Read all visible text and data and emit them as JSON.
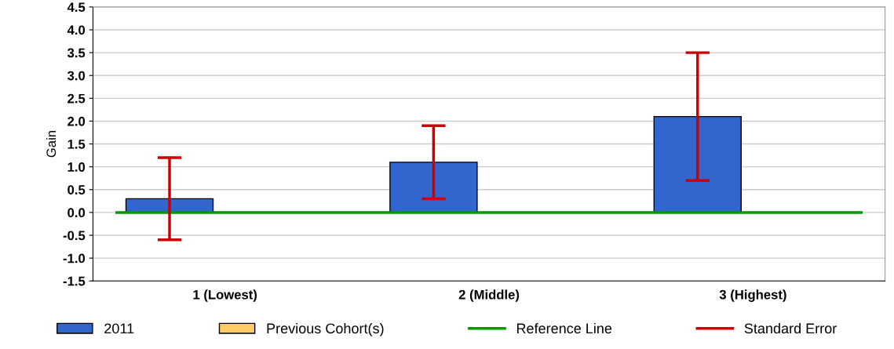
{
  "chart_data": {
    "type": "bar",
    "ylabel": "Gain",
    "categories": [
      "1 (Lowest)",
      "2 (Middle)",
      "3 (Highest)"
    ],
    "series": [
      {
        "name": "2011",
        "color": "#3366cc",
        "values": [
          0.3,
          1.1,
          2.1
        ],
        "errors": [
          [
            -0.6,
            1.2
          ],
          [
            0.3,
            1.9
          ],
          [
            0.7,
            3.5
          ]
        ]
      },
      {
        "name": "Previous Cohort(s)",
        "color": "#ffcc66",
        "values": [
          null,
          null,
          null
        ]
      }
    ],
    "ylim": [
      -1.5,
      4.5
    ],
    "yticks": [
      {
        "value": -1.5,
        "label": "-1.5"
      },
      {
        "value": -1.0,
        "label": "-1.0"
      },
      {
        "value": -0.5,
        "label": "-0.5"
      },
      {
        "value": 0.0,
        "label": "0.0"
      },
      {
        "value": 0.5,
        "label": "0.5"
      },
      {
        "value": 1.0,
        "label": "1.0"
      },
      {
        "value": 1.5,
        "label": "1.5"
      },
      {
        "value": 2.0,
        "label": "2.0"
      },
      {
        "value": 2.5,
        "label": "2.5"
      },
      {
        "value": 3.0,
        "label": "3.0"
      },
      {
        "value": 3.5,
        "label": "3.5"
      },
      {
        "value": 4.0,
        "label": "4.0"
      },
      {
        "value": 4.5,
        "label": "4.5"
      }
    ],
    "ref_lines": [
      {
        "axis": "y",
        "value": 0,
        "label": "Reference Line",
        "color": "#009900"
      }
    ],
    "annotations": [
      "Standard Error"
    ],
    "grid": "y",
    "legend": "bottom"
  }
}
